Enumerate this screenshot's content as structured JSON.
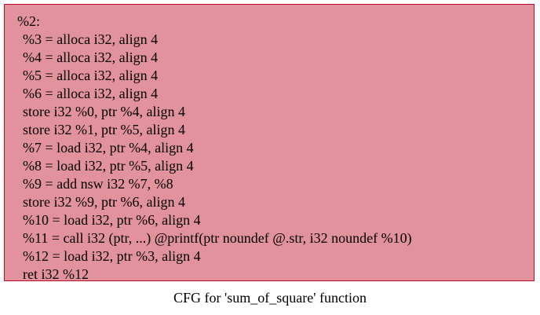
{
  "node": {
    "label": "%2:",
    "lines": [
      "%3 = alloca i32, align 4",
      "%4 = alloca i32, align 4",
      "%5 = alloca i32, align 4",
      "%6 = alloca i32, align 4",
      "store i32 %0, ptr %4, align 4",
      "store i32 %1, ptr %5, align 4",
      "%7 = load i32, ptr %4, align 4",
      "%8 = load i32, ptr %5, align 4",
      "%9 = add nsw i32 %7, %8",
      "store i32 %9, ptr %6, align 4",
      "%10 = load i32, ptr %6, align 4",
      "%11 = call i32 (ptr, ...) @printf(ptr noundef @.str, i32 noundef %10)",
      "%12 = load i32, ptr %3, align 4",
      "ret i32 %12"
    ],
    "fill_color": "#e1929d",
    "border_color": "#b70d28"
  },
  "graph_title": "CFG for 'sum_of_square' function"
}
